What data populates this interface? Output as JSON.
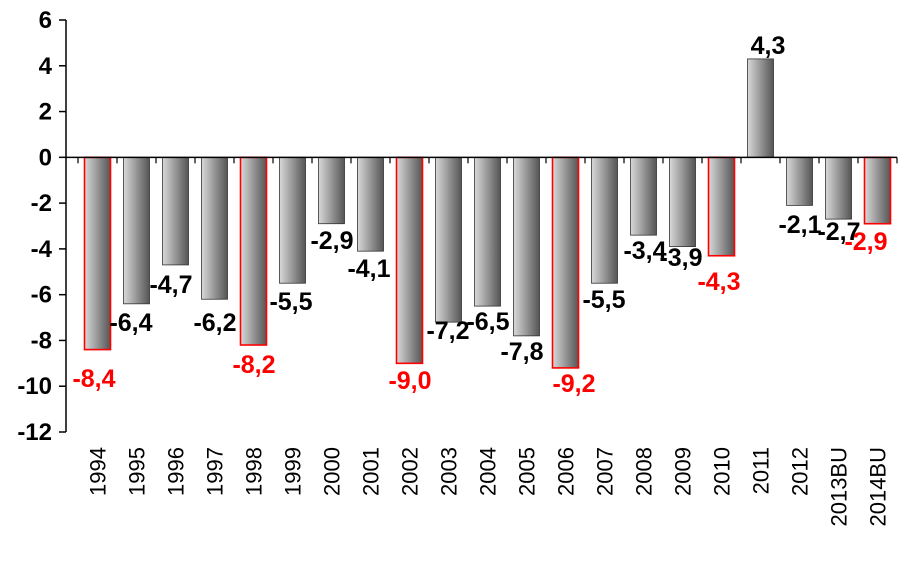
{
  "chart_data": {
    "type": "bar",
    "title": "",
    "xlabel": "",
    "ylabel": "",
    "ylim": [
      -12,
      6
    ],
    "yticks": [
      6,
      4,
      2,
      0,
      -2,
      -4,
      -6,
      -8,
      -10,
      -12
    ],
    "grid": false,
    "categories": [
      "1994",
      "1995",
      "1996",
      "1997",
      "1998",
      "1999",
      "2000",
      "2001",
      "2002",
      "2003",
      "2004",
      "2005",
      "2006",
      "2007",
      "2008",
      "2009",
      "2010",
      "2011",
      "2012",
      "2013BU",
      "2014BU"
    ],
    "values": [
      -8.4,
      -6.4,
      -4.7,
      -6.2,
      -8.2,
      -5.5,
      -2.9,
      -4.1,
      -9.0,
      -7.2,
      -6.5,
      -7.8,
      -9.2,
      -5.5,
      -3.4,
      -3.9,
      -4.3,
      4.3,
      -2.1,
      -2.7,
      -2.9
    ],
    "value_labels": [
      "-8,4",
      "-6,4",
      "-4,7",
      "-6,2",
      "-8,2",
      "-5,5",
      "-2,9",
      "-4,1",
      "-9,0",
      "-7,2",
      "-6,5",
      "-7,8",
      "-9,2",
      "-5,5",
      "-3,4",
      "-3,9",
      "-4,3",
      "4,3",
      "-2,1",
      "-2,7",
      "-2,9"
    ],
    "highlighted": [
      true,
      false,
      false,
      false,
      true,
      false,
      false,
      false,
      true,
      false,
      false,
      false,
      true,
      false,
      false,
      false,
      true,
      false,
      false,
      false,
      true
    ],
    "colors": {
      "bar_dark": "#555555",
      "bar_light": "#d8d8d8",
      "bar_border": "#333333",
      "highlight": "#ff0000",
      "label_normal": "#000000"
    }
  }
}
